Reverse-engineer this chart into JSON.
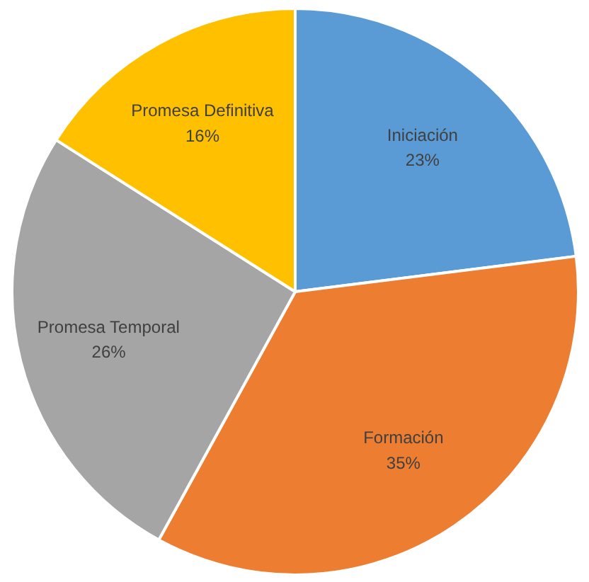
{
  "chart_data": {
    "type": "pie",
    "categories": [
      "Iniciación",
      "Formación",
      "Promesa Temporal",
      "Promesa Definitiva"
    ],
    "values": [
      23,
      35,
      26,
      16
    ],
    "colors": [
      "#5b9bd5",
      "#ed7d31",
      "#a5a5a5",
      "#ffc000"
    ],
    "value_labels": [
      "23%",
      "35%",
      "26%",
      "16%"
    ]
  }
}
